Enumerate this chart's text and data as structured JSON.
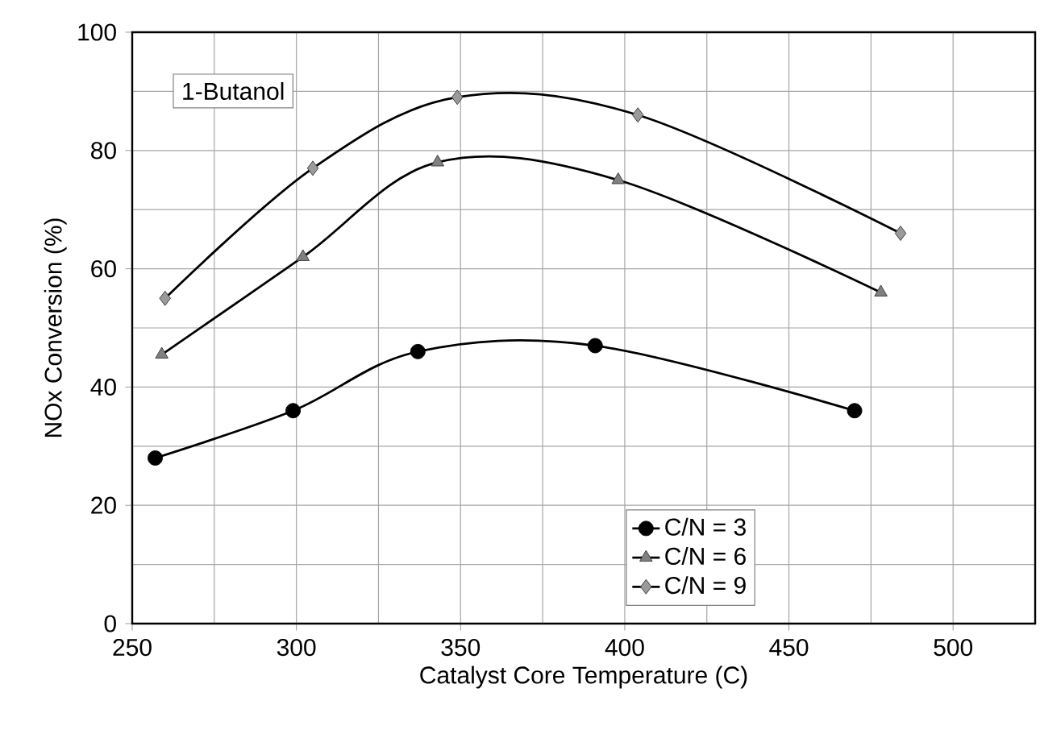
{
  "chart_data": {
    "type": "line",
    "xlabel": "Catalyst Core Temperature (C)",
    "ylabel": "NOx Conversion (%)",
    "xlim": [
      250,
      525
    ],
    "xticks": [
      250,
      300,
      350,
      400,
      450,
      500
    ],
    "ylim": [
      0,
      100
    ],
    "yticks": [
      0,
      20,
      40,
      60,
      80,
      100
    ],
    "grid": true,
    "legend": "bottom right",
    "line_style": "solid",
    "annotations": [
      "1-Butanol"
    ],
    "series": [
      {
        "name": "C/N = 3",
        "color": "#000000",
        "marker": "circle",
        "x": [
          257,
          299,
          337,
          391,
          470
        ],
        "values": [
          28,
          36,
          46,
          47,
          36
        ]
      },
      {
        "name": "C/N = 6",
        "color": "#808080",
        "marker": "triangle",
        "x": [
          259,
          302,
          343,
          398,
          478
        ],
        "values": [
          45.5,
          62,
          78,
          75,
          56
        ]
      },
      {
        "name": "C/N = 9",
        "color": "#9a9a9a",
        "marker": "diamond",
        "x": [
          260,
          305,
          349,
          404,
          484
        ],
        "values": [
          55,
          77,
          89,
          86,
          66
        ]
      }
    ]
  }
}
